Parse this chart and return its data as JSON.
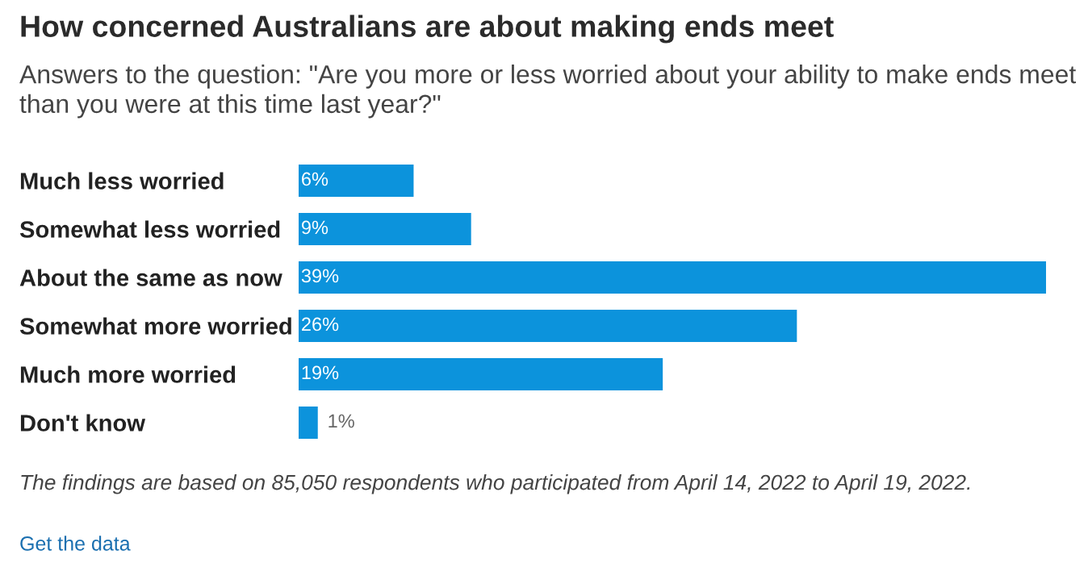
{
  "chart_data": {
    "type": "bar",
    "orientation": "horizontal",
    "title": "How concerned Australians are about making ends meet",
    "subtitle": "Answers to the question: \"Are you more or less worried about your ability to make ends meet than you were at this time last year?\"",
    "categories": [
      "Much less worried",
      "Somewhat less worried",
      "About the same as now",
      "Somewhat more worried",
      "Much more worried",
      "Don't know"
    ],
    "values": [
      6,
      9,
      39,
      26,
      19,
      1
    ],
    "value_labels": [
      "6%",
      "9%",
      "39%",
      "26%",
      "19%",
      "1%"
    ],
    "color": "#0c93dc",
    "tick_labels": "y",
    "grid": false,
    "legend": false,
    "annotations": [
      "The findings are based on 85,050 respondents who participated from April 14, 2022 to April 19, 2022.",
      "Get the data"
    ]
  }
}
